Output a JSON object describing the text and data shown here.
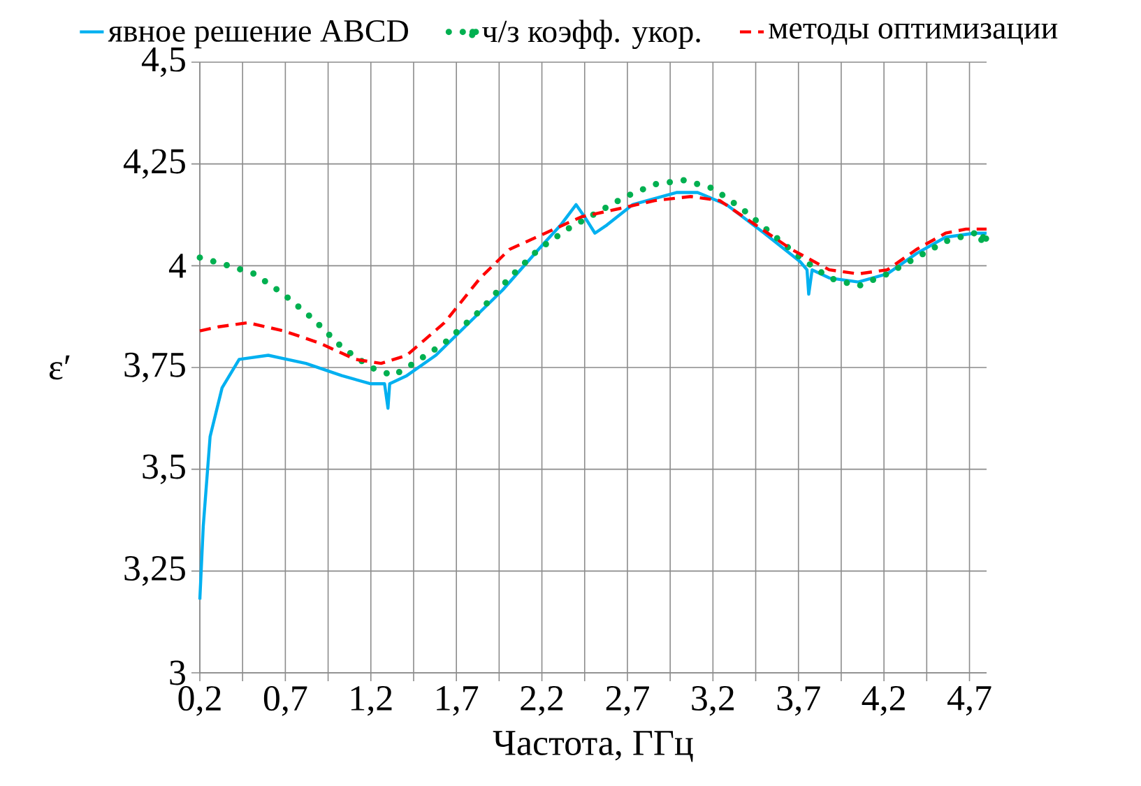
{
  "chart_data": {
    "type": "line",
    "xlabel": "Частота, ГГц",
    "ylabel": "ε′",
    "xlim": [
      0.2,
      4.8
    ],
    "ylim": [
      3,
      4.5
    ],
    "xticks": [
      {
        "value": 0.2,
        "label": "0,2"
      },
      {
        "value": 0.45,
        "label": null
      },
      {
        "value": 0.7,
        "label": "0,7"
      },
      {
        "value": 0.95,
        "label": null
      },
      {
        "value": 1.2,
        "label": "1,2"
      },
      {
        "value": 1.45,
        "label": null
      },
      {
        "value": 1.7,
        "label": "1,7"
      },
      {
        "value": 1.95,
        "label": null
      },
      {
        "value": 2.2,
        "label": "2,2"
      },
      {
        "value": 2.45,
        "label": null
      },
      {
        "value": 2.7,
        "label": "2,7"
      },
      {
        "value": 2.95,
        "label": null
      },
      {
        "value": 3.2,
        "label": "3,2"
      },
      {
        "value": 3.45,
        "label": null
      },
      {
        "value": 3.7,
        "label": "3,7"
      },
      {
        "value": 3.95,
        "label": null
      },
      {
        "value": 4.2,
        "label": "4,2"
      },
      {
        "value": 4.45,
        "label": null
      },
      {
        "value": 4.7,
        "label": "4,7"
      }
    ],
    "yticks": [
      {
        "value": 3,
        "label": "3"
      },
      {
        "value": 3.25,
        "label": "3,25"
      },
      {
        "value": 3.5,
        "label": "3,5"
      },
      {
        "value": 3.75,
        "label": "3,75"
      },
      {
        "value": 4,
        "label": "4"
      },
      {
        "value": 4.25,
        "label": "4,25"
      },
      {
        "value": 4.5,
        "label": "4,5"
      }
    ],
    "grid": true,
    "legend": "top",
    "marker": "none",
    "series": [
      {
        "name": "явное решение ABCD",
        "color": "#00b0f0",
        "line_style": "solid",
        "x": [
          0.2,
          0.22,
          0.26,
          0.33,
          0.43,
          0.6,
          0.82,
          1.03,
          1.2,
          1.28,
          1.3,
          1.31,
          1.41,
          1.58,
          1.75,
          1.97,
          2.18,
          2.31,
          2.4,
          2.45,
          2.51,
          2.58,
          2.73,
          2.99,
          3.11,
          3.28,
          3.5,
          3.71,
          3.75,
          3.76,
          3.78,
          3.88,
          4.05,
          4.22,
          4.39,
          4.56,
          4.73,
          4.8
        ],
        "values": [
          3.18,
          3.36,
          3.58,
          3.7,
          3.77,
          3.78,
          3.76,
          3.73,
          3.71,
          3.71,
          3.65,
          3.71,
          3.73,
          3.78,
          3.85,
          3.94,
          4.04,
          4.1,
          4.15,
          4.12,
          4.08,
          4.1,
          4.15,
          4.18,
          4.18,
          4.15,
          4.08,
          4.01,
          3.99,
          3.93,
          3.99,
          3.97,
          3.96,
          3.98,
          4.03,
          4.07,
          4.08,
          4.08
        ]
      },
      {
        "name": "ч/з коэфф. укор.",
        "color": "#00b050",
        "line_style": "dotted",
        "x": [
          0.2,
          0.37,
          0.52,
          0.69,
          0.86,
          1.03,
          1.2,
          1.33,
          1.45,
          1.63,
          1.84,
          2.01,
          2.18,
          2.35,
          2.52,
          2.69,
          2.86,
          3.03,
          3.2,
          3.37,
          3.54,
          3.71,
          3.88,
          4.05,
          4.22,
          4.39,
          4.56,
          4.73,
          4.78
        ],
        "values": [
          4.02,
          4.0,
          3.98,
          3.93,
          3.87,
          3.8,
          3.75,
          3.73,
          3.76,
          3.81,
          3.89,
          3.97,
          4.04,
          4.09,
          4.13,
          4.17,
          4.2,
          4.21,
          4.19,
          4.14,
          4.08,
          4.02,
          3.97,
          3.95,
          3.98,
          4.02,
          4.06,
          4.08,
          4.07
        ]
      },
      {
        "name": "методы оптимизации",
        "color": "#ff0000",
        "line_style": "dashed",
        "x": [
          0.2,
          0.31,
          0.48,
          0.69,
          0.9,
          1.11,
          1.26,
          1.41,
          1.63,
          1.84,
          2.01,
          2.22,
          2.43,
          2.65,
          2.86,
          3.07,
          3.24,
          3.45,
          3.66,
          3.88,
          4.05,
          4.22,
          4.39,
          4.56,
          4.68,
          4.8
        ],
        "values": [
          3.84,
          3.85,
          3.86,
          3.84,
          3.81,
          3.77,
          3.76,
          3.78,
          3.86,
          3.97,
          4.04,
          4.08,
          4.12,
          4.14,
          4.16,
          4.17,
          4.16,
          4.1,
          4.04,
          3.99,
          3.98,
          3.99,
          4.04,
          4.08,
          4.09,
          4.09
        ]
      }
    ]
  }
}
